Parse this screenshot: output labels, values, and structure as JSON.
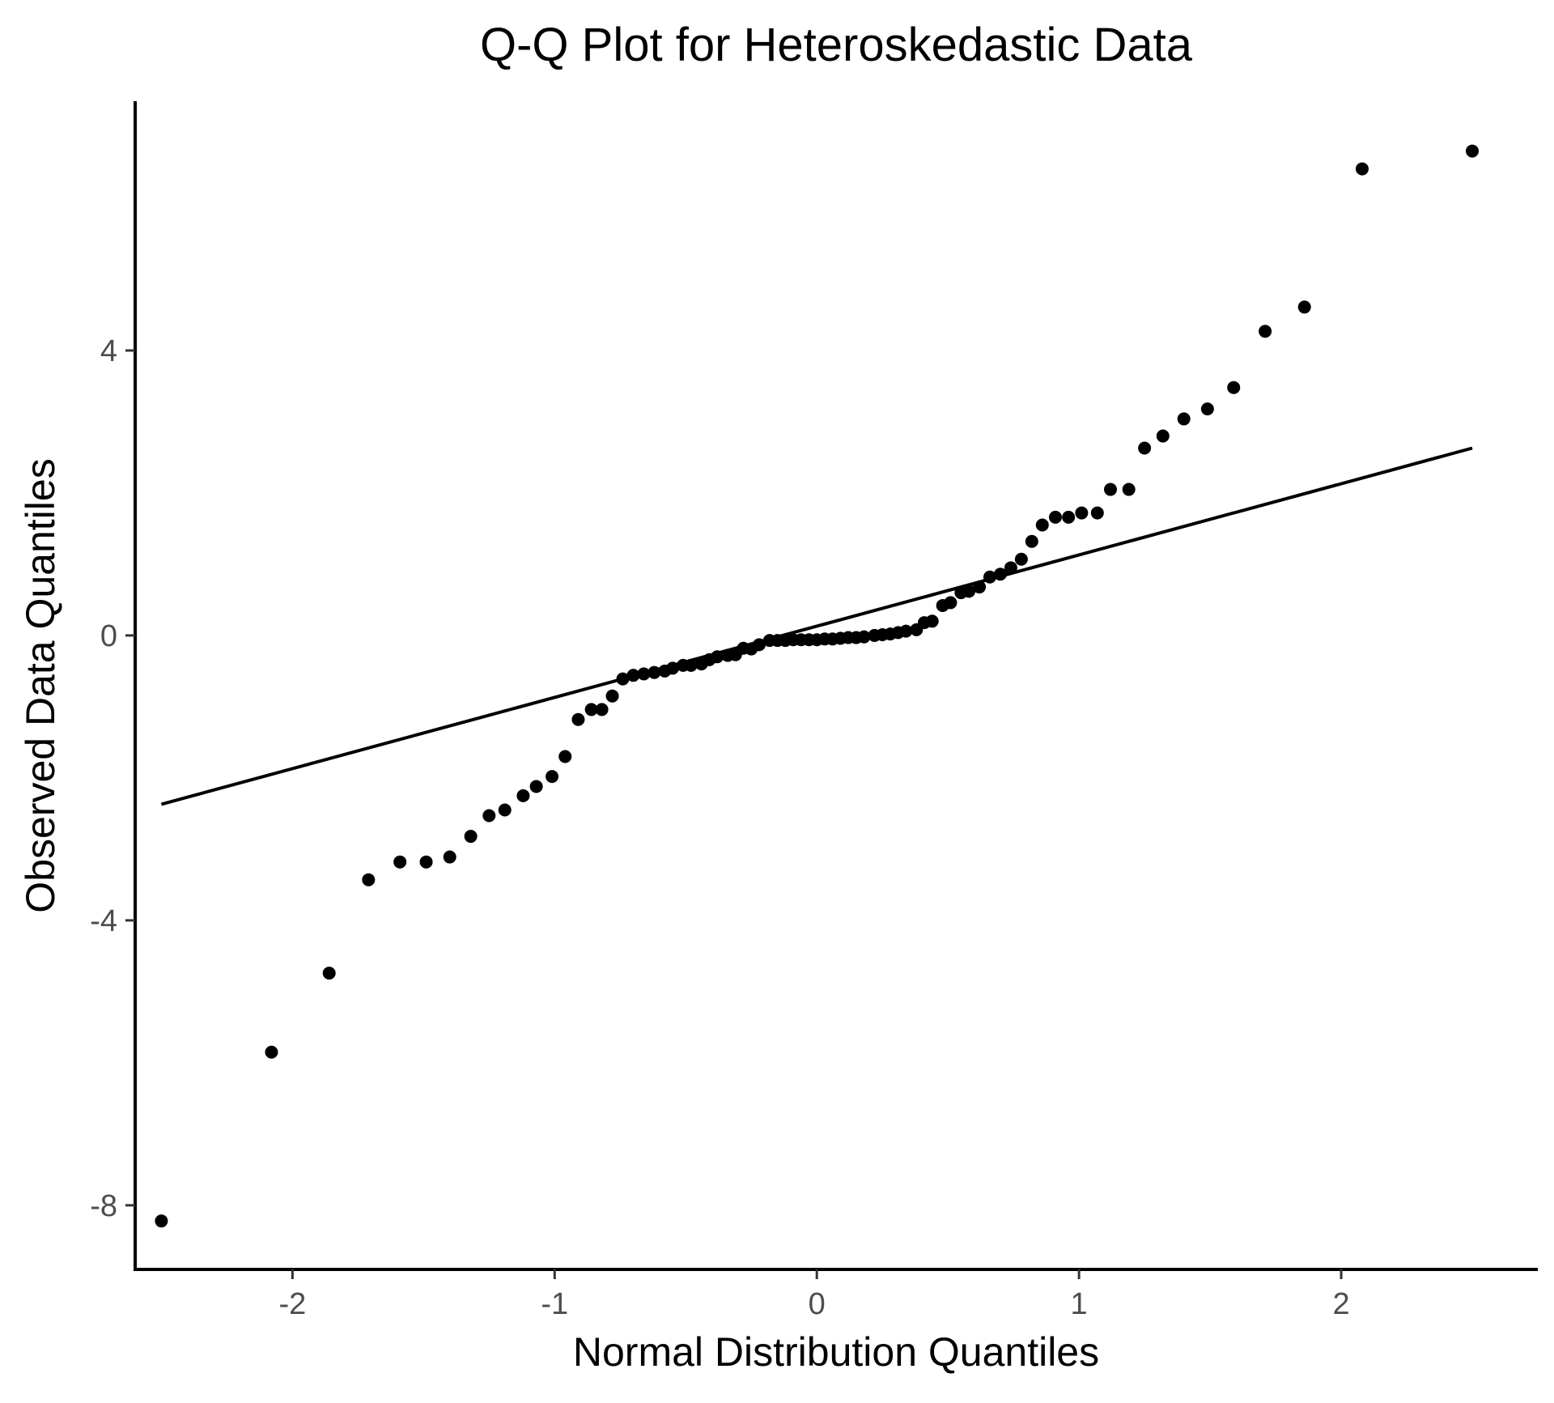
{
  "chart_data": {
    "type": "scatter",
    "title": "Q-Q Plot for Heteroskedastic Data",
    "xlabel": "Normal Distribution Quantiles",
    "ylabel": "Observed Data Quantiles",
    "xlim": [
      -2.6,
      2.75
    ],
    "ylim": [
      -8.9,
      7.5
    ],
    "x_ticks": [
      -2,
      -1,
      0,
      1,
      2
    ],
    "x_tick_labels": [
      "-2",
      "-1",
      "0",
      "1",
      "2"
    ],
    "y_ticks": [
      -8,
      -4,
      0,
      4
    ],
    "y_tick_labels": [
      "-8",
      "-4",
      "0",
      "4"
    ],
    "grid": false,
    "legend": "none",
    "reference_line": {
      "x": [
        -2.5,
        2.5
      ],
      "y": [
        -2.37,
        2.63
      ]
    },
    "point_color": "#000000",
    "line_color": "#000000",
    "points": [
      [
        -2.5,
        -8.22
      ],
      [
        -2.08,
        -5.85
      ],
      [
        -1.86,
        -4.74
      ],
      [
        -1.71,
        -3.43
      ],
      [
        -1.59,
        -3.18
      ],
      [
        -1.49,
        -3.18
      ],
      [
        -1.4,
        -3.11
      ],
      [
        -1.32,
        -2.82
      ],
      [
        -1.25,
        -2.53
      ],
      [
        -1.19,
        -2.45
      ],
      [
        -1.12,
        -2.25
      ],
      [
        -1.07,
        -2.12
      ],
      [
        -1.01,
        -1.98
      ],
      [
        -0.96,
        -1.7
      ],
      [
        -0.91,
        -1.18
      ],
      [
        -0.86,
        -1.04
      ],
      [
        -0.82,
        -1.04
      ],
      [
        -0.78,
        -0.85
      ],
      [
        -0.74,
        -0.61
      ],
      [
        -0.7,
        -0.56
      ],
      [
        -0.66,
        -0.54
      ],
      [
        -0.62,
        -0.52
      ],
      [
        -0.58,
        -0.5
      ],
      [
        -0.55,
        -0.46
      ],
      [
        -0.51,
        -0.42
      ],
      [
        -0.48,
        -0.42
      ],
      [
        -0.44,
        -0.4
      ],
      [
        -0.41,
        -0.34
      ],
      [
        -0.38,
        -0.3
      ],
      [
        -0.34,
        -0.28
      ],
      [
        -0.31,
        -0.27
      ],
      [
        -0.28,
        -0.18
      ],
      [
        -0.25,
        -0.19
      ],
      [
        -0.22,
        -0.13
      ],
      [
        -0.18,
        -0.07
      ],
      [
        -0.15,
        -0.07
      ],
      [
        -0.12,
        -0.07
      ],
      [
        -0.09,
        -0.06
      ],
      [
        -0.06,
        -0.06
      ],
      [
        -0.03,
        -0.06
      ],
      [
        0.0,
        -0.06
      ],
      [
        0.03,
        -0.05
      ],
      [
        0.06,
        -0.05
      ],
      [
        0.09,
        -0.04
      ],
      [
        0.12,
        -0.03
      ],
      [
        0.15,
        -0.03
      ],
      [
        0.18,
        -0.02
      ],
      [
        0.22,
        0.0
      ],
      [
        0.25,
        0.01
      ],
      [
        0.28,
        0.02
      ],
      [
        0.31,
        0.04
      ],
      [
        0.34,
        0.06
      ],
      [
        0.38,
        0.08
      ],
      [
        0.41,
        0.18
      ],
      [
        0.44,
        0.2
      ],
      [
        0.48,
        0.42
      ],
      [
        0.51,
        0.46
      ],
      [
        0.55,
        0.6
      ],
      [
        0.58,
        0.62
      ],
      [
        0.62,
        0.68
      ],
      [
        0.66,
        0.82
      ],
      [
        0.7,
        0.86
      ],
      [
        0.74,
        0.95
      ],
      [
        0.78,
        1.07
      ],
      [
        0.82,
        1.32
      ],
      [
        0.86,
        1.55
      ],
      [
        0.91,
        1.66
      ],
      [
        0.96,
        1.66
      ],
      [
        1.01,
        1.72
      ],
      [
        1.07,
        1.72
      ],
      [
        1.12,
        2.05
      ],
      [
        1.19,
        2.05
      ],
      [
        1.25,
        2.63
      ],
      [
        1.32,
        2.8
      ],
      [
        1.4,
        3.04
      ],
      [
        1.49,
        3.18
      ],
      [
        1.59,
        3.48
      ],
      [
        1.71,
        4.27
      ],
      [
        1.86,
        4.61
      ],
      [
        2.08,
        6.55
      ],
      [
        2.5,
        6.8
      ]
    ]
  }
}
